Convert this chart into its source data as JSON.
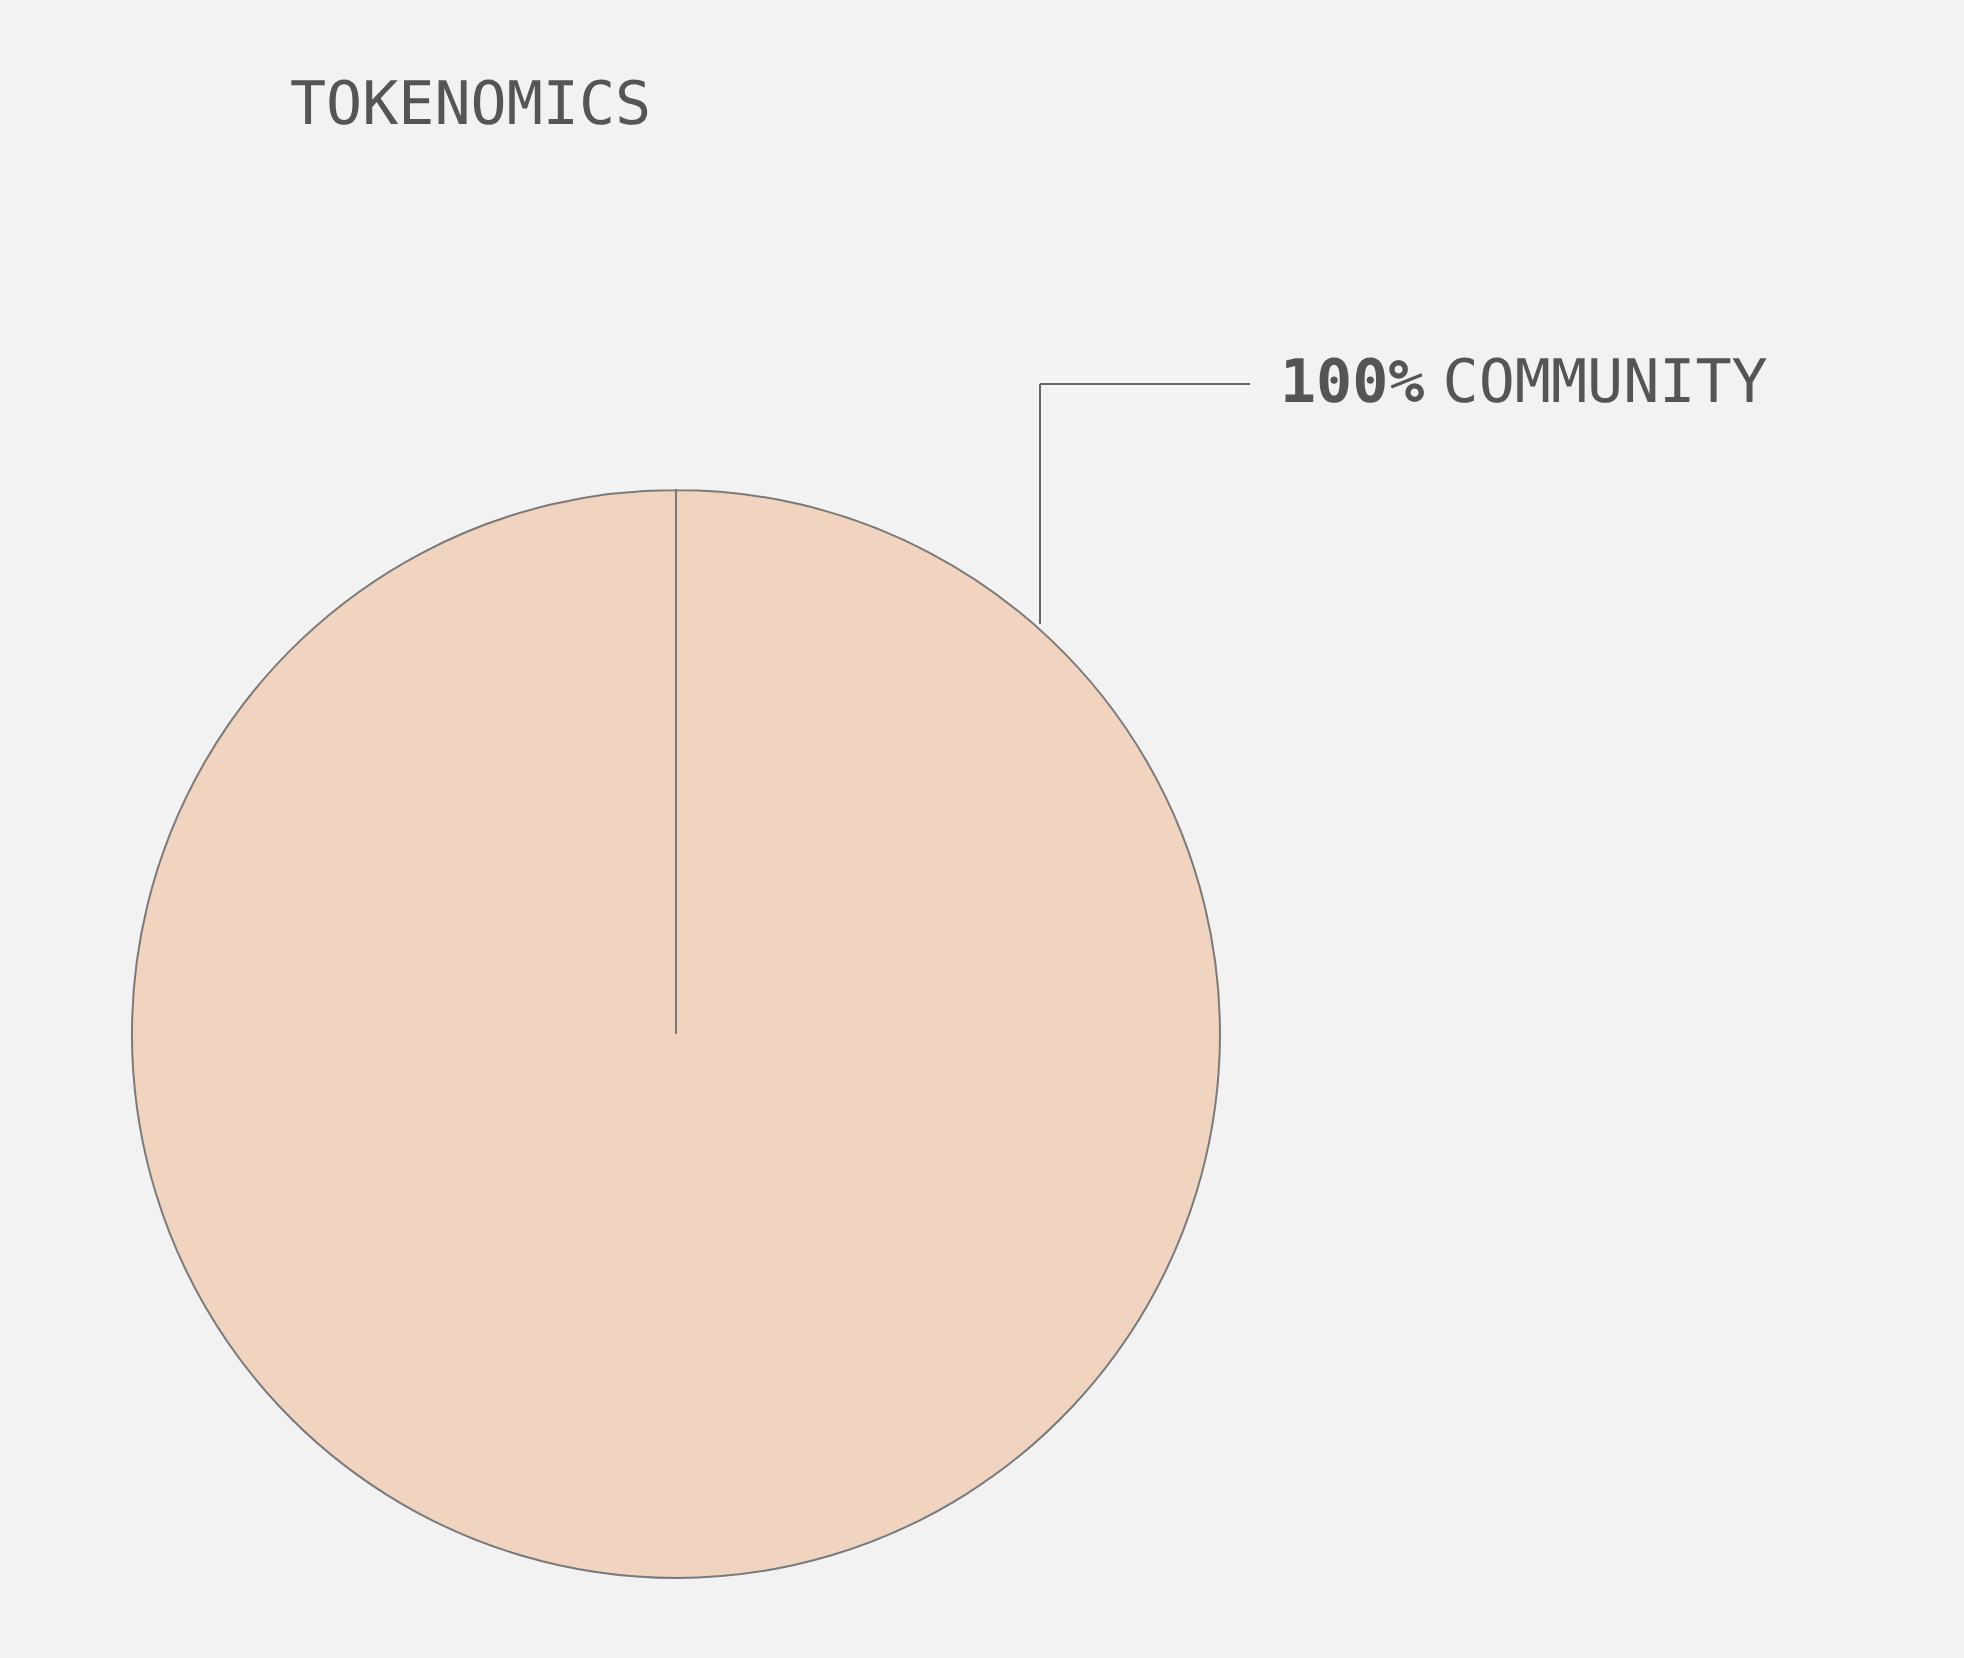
{
  "chart_data": {
    "type": "pie",
    "title": "TOKENOMICS",
    "categories": [
      "COMMUNITY"
    ],
    "values": [
      100
    ],
    "colors": [
      "#f1d4bf"
    ],
    "value_labels": [
      "100%"
    ]
  }
}
